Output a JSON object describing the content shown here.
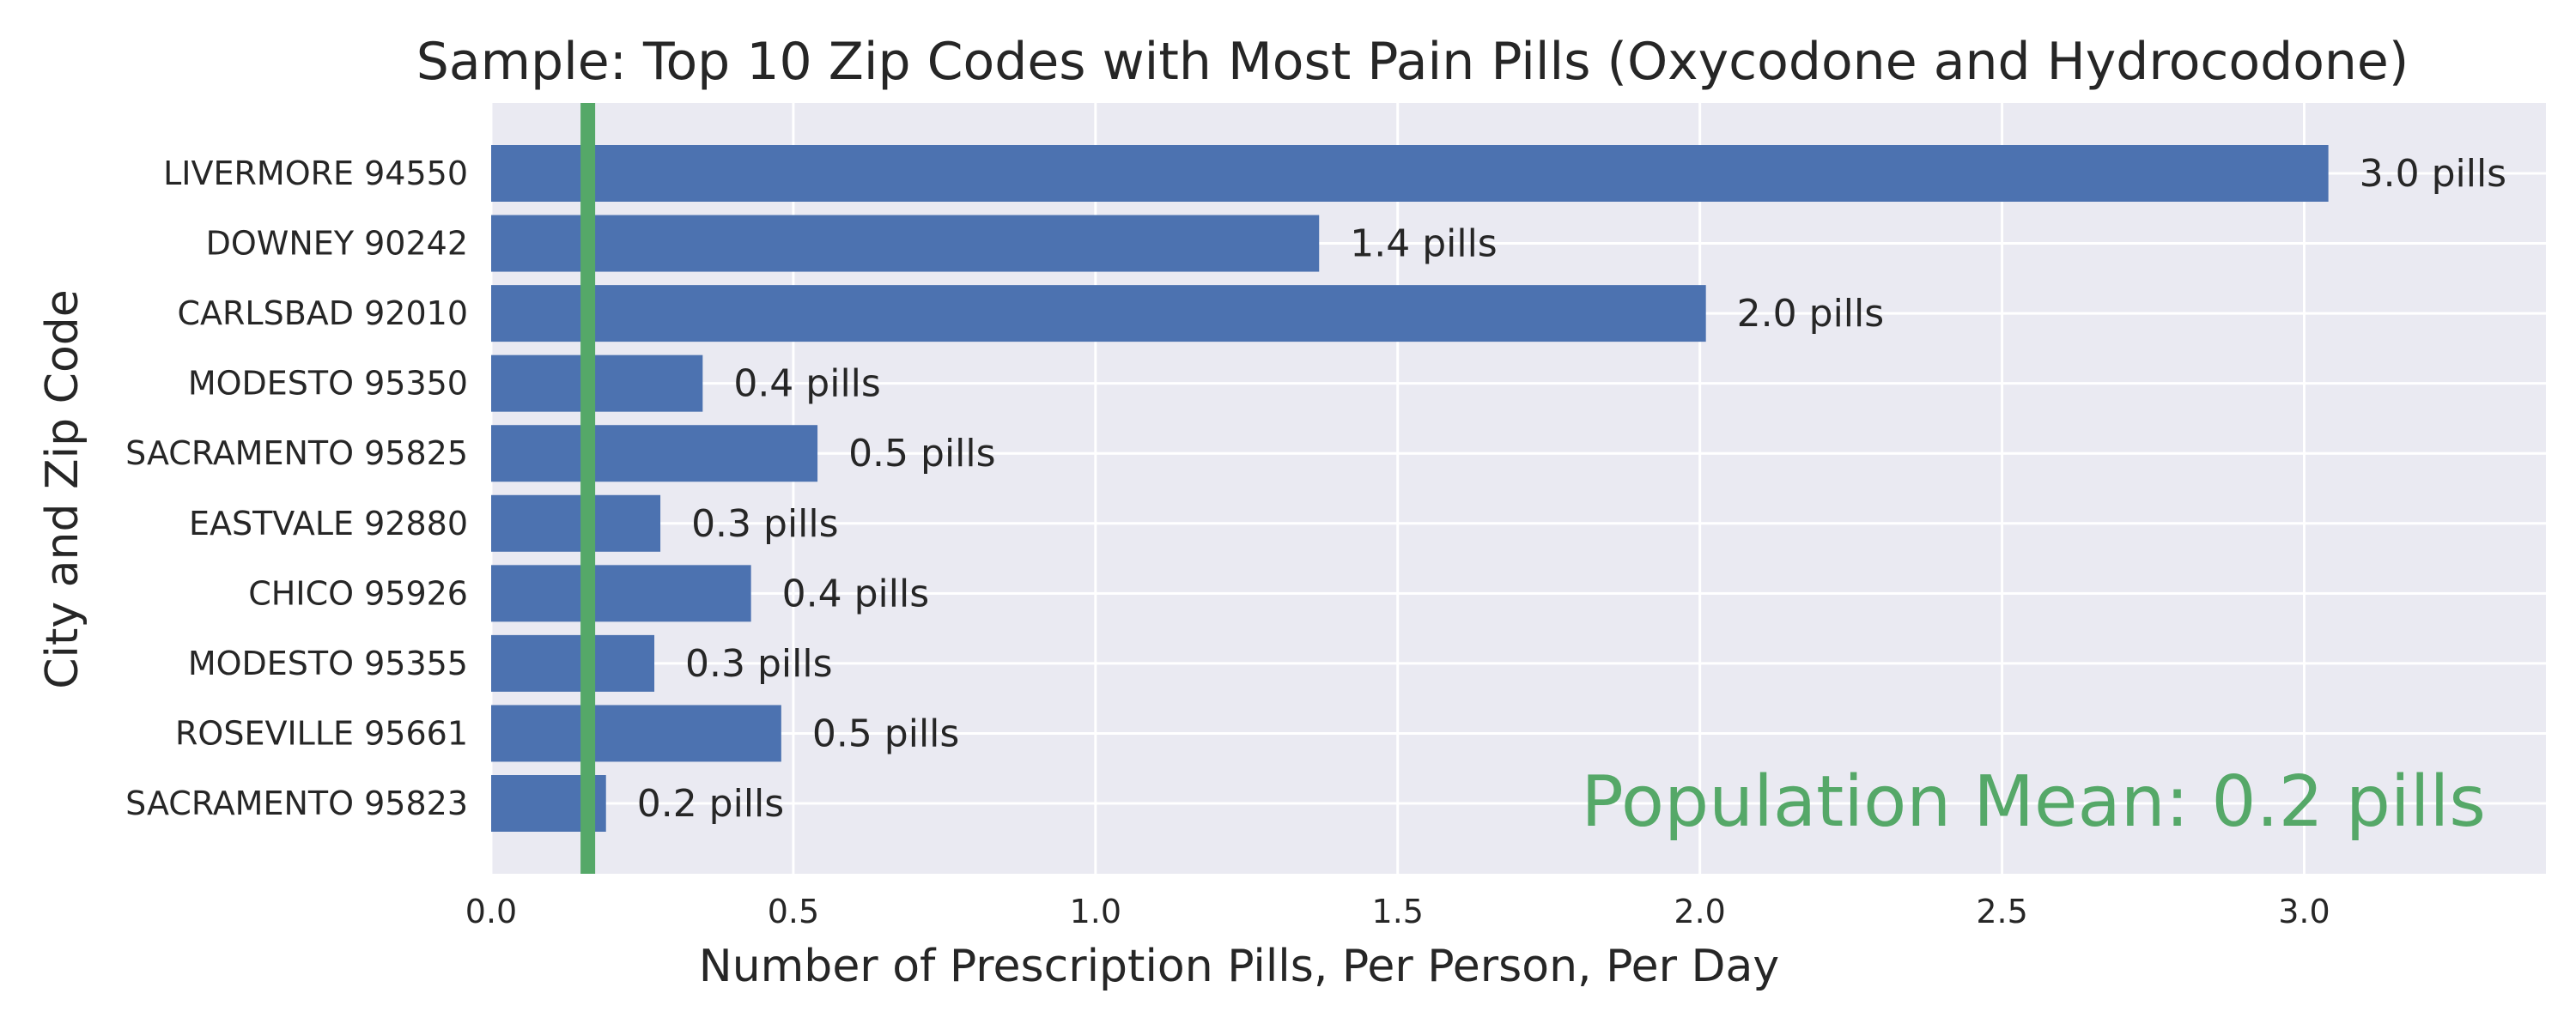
{
  "chart_data": {
    "type": "bar",
    "orientation": "horizontal",
    "title": "Sample: Top 10 Zip Codes with Most Pain Pills (Oxycodone and Hydrocodone)",
    "xlabel": "Number of Prescription Pills, Per Person, Per Day",
    "ylabel": "City and Zip Code",
    "categories": [
      "LIVERMORE 94550",
      "DOWNEY 90242",
      "CARLSBAD 92010",
      "MODESTO 95350",
      "SACRAMENTO 95825",
      "EASTVALE 92880",
      "CHICO 95926",
      "MODESTO 95355",
      "ROSEVILLE 95661",
      "SACRAMENTO 95823"
    ],
    "values": [
      3.04,
      1.37,
      2.01,
      0.35,
      0.54,
      0.28,
      0.43,
      0.27,
      0.48,
      0.19
    ],
    "data_labels": [
      "3.0 pills",
      "1.4 pills",
      "2.0 pills",
      "0.4 pills",
      "0.5 pills",
      "0.3 pills",
      "0.4 pills",
      "0.3 pills",
      "0.5 pills",
      "0.2 pills"
    ],
    "xlim": [
      0,
      3.4
    ],
    "xticks": [
      0.0,
      0.5,
      1.0,
      1.5,
      2.0,
      2.5,
      3.0
    ],
    "xtick_labels": [
      "0.0",
      "0.5",
      "1.0",
      "1.5",
      "2.0",
      "2.5",
      "3.0"
    ],
    "grid": true,
    "reference_line": {
      "value": 0.16,
      "color": "#55a868"
    },
    "annotation": {
      "text": "Population Mean: 0.2 pills",
      "color": "#55a868",
      "placement": "bottom-right"
    },
    "colors": {
      "bar": "#4c72b0",
      "background": "#eaeaf2",
      "grid": "#ffffff"
    }
  }
}
